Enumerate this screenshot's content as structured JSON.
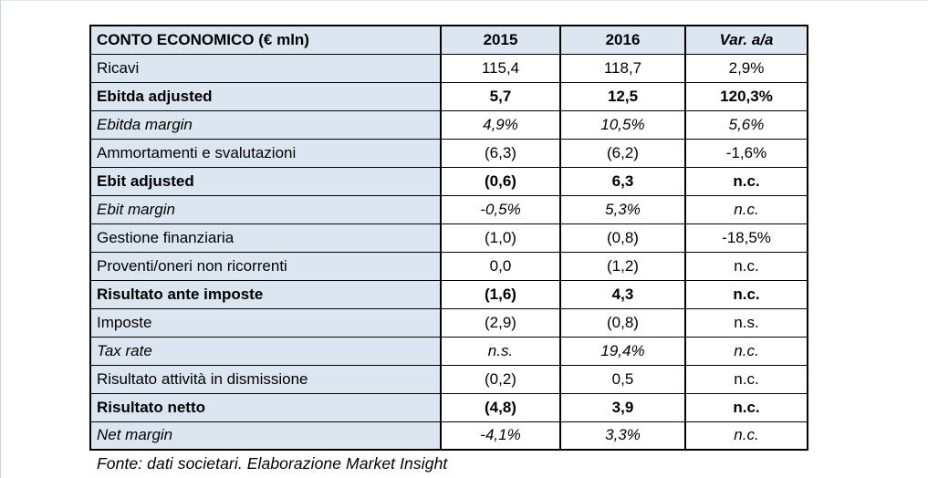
{
  "header": {
    "label": "CONTO ECONOMICO (€ mln)",
    "col_2015": "2015",
    "col_2016": "2016",
    "col_var": "Var. a/a"
  },
  "colors": {
    "header_fill": "#dce6f1",
    "label_column_fill": "#dce6f1",
    "border": "#000000",
    "page_edge_line": "#c9d2e0"
  },
  "rows": [
    {
      "label": "Ricavi",
      "style": "regular",
      "v2015": "115,4",
      "v2016": "118,7",
      "var": "2,9%"
    },
    {
      "label": "Ebitda adjusted",
      "style": "bold",
      "v2015": "5,7",
      "v2016": "12,5",
      "var": "120,3%"
    },
    {
      "label": "Ebitda margin",
      "style": "italic",
      "v2015": "4,9%",
      "v2016": "10,5%",
      "var": "5,6%"
    },
    {
      "label": "Ammortamenti e svalutazioni",
      "style": "regular",
      "v2015": "(6,3)",
      "v2016": "(6,2)",
      "var": "-1,6%"
    },
    {
      "label": "Ebit adjusted",
      "style": "bold",
      "v2015": "(0,6)",
      "v2016": "6,3",
      "var": "n.c."
    },
    {
      "label": "Ebit margin",
      "style": "italic",
      "v2015": "-0,5%",
      "v2016": "5,3%",
      "var": "n.c."
    },
    {
      "label": "Gestione finanziaria",
      "style": "regular",
      "v2015": "(1,0)",
      "v2016": "(0,8)",
      "var": "-18,5%"
    },
    {
      "label": "Proventi/oneri non ricorrenti",
      "style": "regular",
      "v2015": "0,0",
      "v2016": "(1,2)",
      "var": "n.c."
    },
    {
      "label": "Risultato ante imposte",
      "style": "bold",
      "v2015": "(1,6)",
      "v2016": "4,3",
      "var": "n.c."
    },
    {
      "label": "Imposte",
      "style": "regular",
      "v2015": "(2,9)",
      "v2016": "(0,8)",
      "var": "n.s."
    },
    {
      "label": "Tax rate",
      "style": "italic",
      "v2015": "n.s.",
      "v2016": "19,4%",
      "var": "n.c."
    },
    {
      "label": "Risultato attività in dismissione",
      "style": "regular",
      "v2015": "(0,2)",
      "v2016": "0,5",
      "var": "n.c."
    },
    {
      "label": "Risultato netto",
      "style": "bold",
      "v2015": "(4,8)",
      "v2016": "3,9",
      "var": "n.c."
    },
    {
      "label": "Net margin",
      "style": "italic",
      "v2015": "-4,1%",
      "v2016": "3,3%",
      "var": "n.c."
    }
  ],
  "footer": {
    "source_note": "Fonte: dati societari. Elaborazione Market Insight"
  },
  "chart_data": {
    "type": "table",
    "title": "CONTO ECONOMICO (€ mln)",
    "columns": [
      "CONTO ECONOMICO (€ mln)",
      "2015",
      "2016",
      "Var. a/a"
    ],
    "rows": [
      [
        "Ricavi",
        "115,4",
        "118,7",
        "2,9%"
      ],
      [
        "Ebitda adjusted",
        "5,7",
        "12,5",
        "120,3%"
      ],
      [
        "Ebitda margin",
        "4,9%",
        "10,5%",
        "5,6%"
      ],
      [
        "Ammortamenti e svalutazioni",
        "(6,3)",
        "(6,2)",
        "-1,6%"
      ],
      [
        "Ebit adjusted",
        "(0,6)",
        "6,3",
        "n.c."
      ],
      [
        "Ebit margin",
        "-0,5%",
        "5,3%",
        "n.c."
      ],
      [
        "Gestione finanziaria",
        "(1,0)",
        "(0,8)",
        "-18,5%"
      ],
      [
        "Proventi/oneri non ricorrenti",
        "0,0",
        "(1,2)",
        "n.c."
      ],
      [
        "Risultato ante imposte",
        "(1,6)",
        "4,3",
        "n.c."
      ],
      [
        "Imposte",
        "(2,9)",
        "(0,8)",
        "n.s."
      ],
      [
        "Tax rate",
        "n.s.",
        "19,4%",
        "n.c."
      ],
      [
        "Risultato attività in dismissione",
        "(0,2)",
        "0,5",
        "n.c."
      ],
      [
        "Risultato netto",
        "(4,8)",
        "3,9",
        "n.c."
      ],
      [
        "Net margin",
        "-4,1%",
        "3,3%",
        "n.c."
      ]
    ],
    "notes": "Fonte: dati societari. Elaborazione Market Insight"
  }
}
